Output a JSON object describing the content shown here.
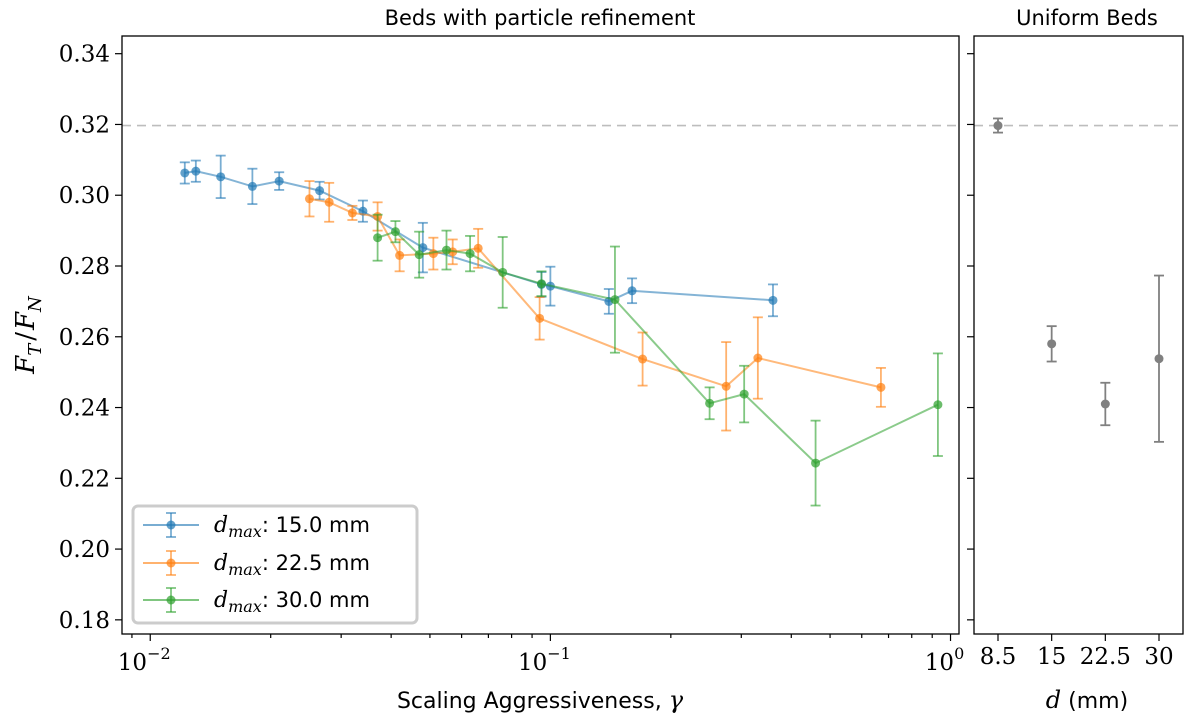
{
  "chart_data": [
    {
      "type": "line",
      "title": "Beds with particle refinement",
      "xlabel": "Scaling Aggressiveness, ",
      "xlabel_symbol": "γ",
      "ylabel": "F_T / F_N",
      "ylabel_parts": {
        "f1": "F",
        "s1": "T",
        "slash": "/",
        "f2": "F",
        "s2": "N"
      },
      "xscale": "log",
      "xlim": [
        0.0085,
        1.05
      ],
      "ylim": [
        0.176,
        0.345
      ],
      "x_ticks": [
        {
          "value": 0.01,
          "base": "10",
          "exp": "−2"
        },
        {
          "value": 0.1,
          "base": "10",
          "exp": "−1"
        },
        {
          "value": 1,
          "base": "10",
          "exp": "0"
        }
      ],
      "y_ticks": [
        {
          "value": 0.18,
          "label": "0.18"
        },
        {
          "value": 0.2,
          "label": "0.20"
        },
        {
          "value": 0.22,
          "label": "0.22"
        },
        {
          "value": 0.24,
          "label": "0.24"
        },
        {
          "value": 0.26,
          "label": "0.26"
        },
        {
          "value": 0.28,
          "label": "0.28"
        },
        {
          "value": 0.3,
          "label": "0.30"
        },
        {
          "value": 0.32,
          "label": "0.32"
        },
        {
          "value": 0.34,
          "label": "0.34"
        }
      ],
      "reference_line": 0.3197,
      "grid": false,
      "legend": {
        "placement": "lower-left",
        "entries": [
          {
            "symbol": "d",
            "sub": "max",
            "text": ": 15.0 mm"
          },
          {
            "symbol": "d",
            "sub": "max",
            "text": ": 22.5 mm"
          },
          {
            "symbol": "d",
            "sub": "max",
            "text": ": 30.0 mm"
          }
        ]
      },
      "series": [
        {
          "key": "d15",
          "color": "#1f77b4",
          "x": [
            0.0122,
            0.013,
            0.015,
            0.018,
            0.021,
            0.0265,
            0.034,
            0.048,
            0.095,
            0.1,
            0.14,
            0.16,
            0.36
          ],
          "y": [
            0.3063,
            0.3068,
            0.3052,
            0.3025,
            0.304,
            0.3013,
            0.2955,
            0.2852,
            0.2748,
            0.2743,
            0.27,
            0.273,
            0.2703
          ],
          "err": [
            0.003,
            0.003,
            0.006,
            0.005,
            0.0025,
            0.0025,
            0.003,
            0.007,
            0.0035,
            0.0055,
            0.0035,
            0.0035,
            0.0045
          ]
        },
        {
          "key": "d225",
          "color": "#ff7f0e",
          "x": [
            0.025,
            0.028,
            0.032,
            0.037,
            0.042,
            0.051,
            0.057,
            0.066,
            0.094,
            0.17,
            0.275,
            0.33,
            0.67
          ],
          "y": [
            0.299,
            0.298,
            0.295,
            0.294,
            0.283,
            0.2835,
            0.284,
            0.285,
            0.2652,
            0.2537,
            0.246,
            0.254,
            0.2457
          ],
          "err": [
            0.005,
            0.0055,
            0.002,
            0.004,
            0.0045,
            0.0045,
            0.0035,
            0.0055,
            0.006,
            0.0075,
            0.0125,
            0.0115,
            0.0055
          ]
        },
        {
          "key": "d30",
          "color": "#2ca02c",
          "x": [
            0.037,
            0.041,
            0.047,
            0.055,
            0.063,
            0.076,
            0.095,
            0.145,
            0.25,
            0.305,
            0.46,
            0.93
          ],
          "y": [
            0.288,
            0.2897,
            0.2832,
            0.2845,
            0.2835,
            0.2782,
            0.275,
            0.2705,
            0.2412,
            0.2438,
            0.2243,
            0.2408
          ],
          "err": [
            0.0065,
            0.003,
            0.0065,
            0.0055,
            0.005,
            0.01,
            0.0035,
            0.015,
            0.0045,
            0.008,
            0.012,
            0.0145
          ]
        }
      ]
    },
    {
      "type": "scatter",
      "title": "Uniform Beds",
      "xlabel_symbol": "d",
      "xlabel": " (mm)",
      "categories": [
        "8.5",
        "15",
        "22.5",
        "30"
      ],
      "values": [
        0.3197,
        0.258,
        0.241,
        0.2538
      ],
      "err": [
        0.002,
        0.005,
        0.006,
        0.0235
      ],
      "color": "#808080",
      "ylim": [
        0.176,
        0.345
      ],
      "reference_line": 0.3197,
      "grid": false
    }
  ]
}
